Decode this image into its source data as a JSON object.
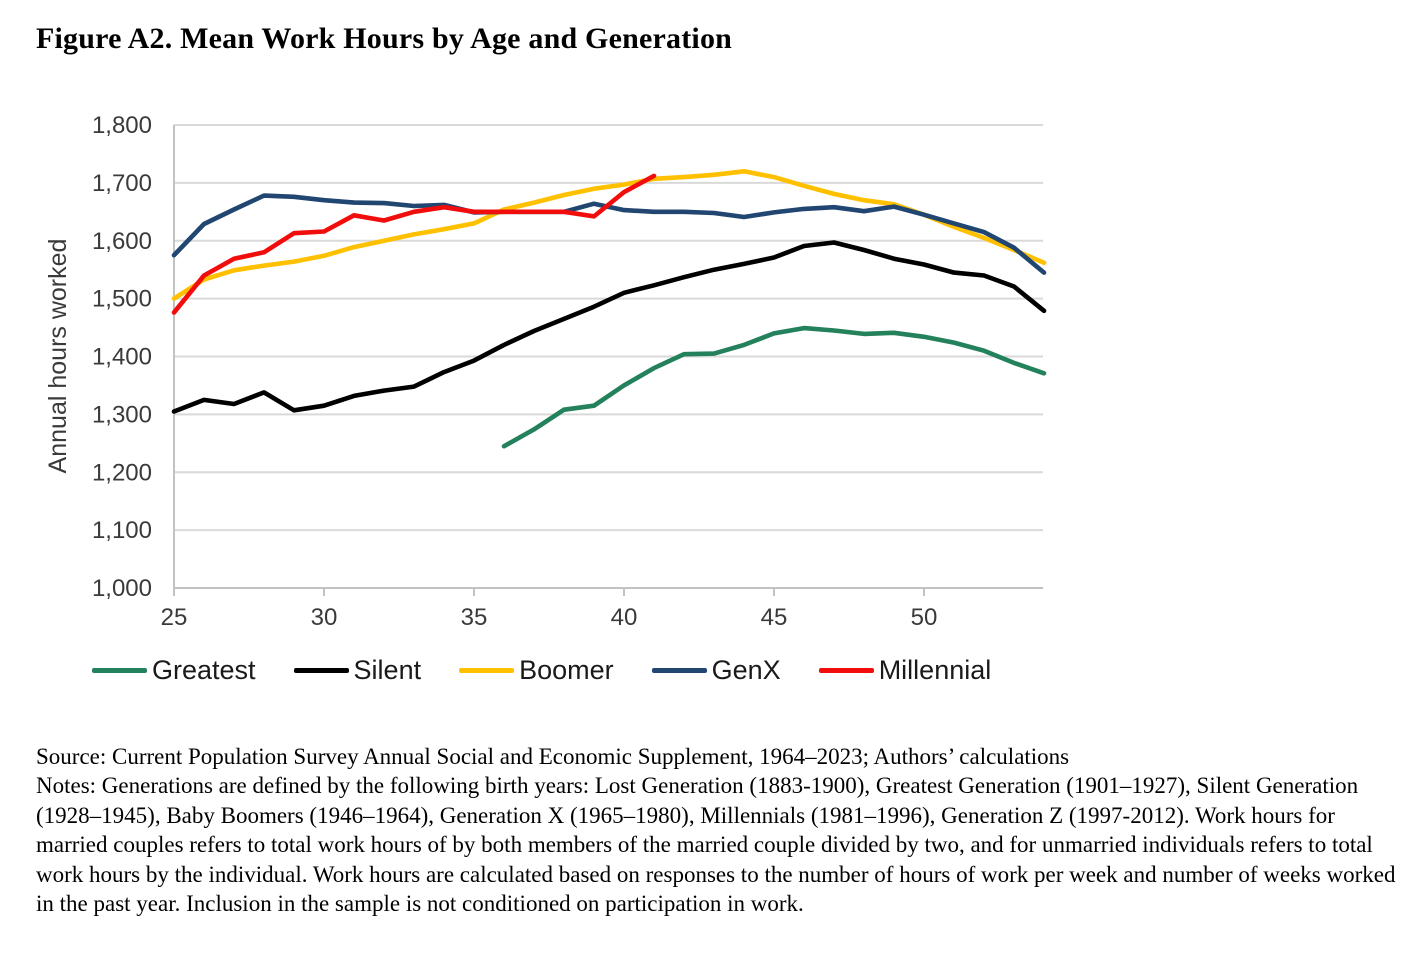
{
  "title": "Figure A2. Mean Work Hours by Age and Generation",
  "source": "Source: Current Population Survey Annual Social and Economic Supplement, 1964–2023; Authors’ calculations",
  "notes": "Notes: Generations are defined by the following birth years: Lost Generation (1883-1900), Greatest Generation (1901–1927), Silent Generation (1928–1945), Baby Boomers (1946–1964), Generation X (1965–1980), Millennials (1981–1996), Generation Z (1997-2012). Work hours for married couples refers to total work hours of by both members of the married couple divided by two, and for unmarried individuals refers to total work hours by the individual. Work hours are calculated based on responses to the number of hours of work per week and number of weeks worked in the past year. Inclusion in the sample is not conditioned on participation in work.",
  "chart_data": {
    "type": "line",
    "title": "Figure A2. Mean Work Hours by Age and Generation",
    "xlabel": "",
    "ylabel": "Annual hours worked",
    "xlim": [
      25,
      54.3
    ],
    "ylim": [
      1000,
      1800
    ],
    "x_ticks": [
      25,
      30,
      35,
      40,
      45,
      50
    ],
    "y_tick_values": [
      1000,
      1100,
      1200,
      1300,
      1400,
      1500,
      1600,
      1700,
      1800
    ],
    "y_tick_labels": [
      "1,000",
      "1,100",
      "1,200",
      "1,300",
      "1,400",
      "1,500",
      "1,600",
      "1,700",
      "1,800"
    ],
    "grid": true,
    "legend_position": "bottom",
    "grid_color": "#d9d9d9",
    "axis_color": "#c2c2c2",
    "series": [
      {
        "name": "Greatest",
        "color": "#23825b",
        "ages": [
          36,
          37,
          38,
          39,
          40,
          41,
          42,
          43,
          44,
          45,
          46,
          47,
          48,
          49,
          50,
          51,
          52,
          53,
          54
        ],
        "values": [
          1245,
          1274,
          1308,
          1315,
          1350,
          1380,
          1404,
          1405,
          1420,
          1440,
          1449,
          1445,
          1439,
          1441,
          1434,
          1424,
          1410,
          1389,
          1371
        ]
      },
      {
        "name": "Silent",
        "color": "#000000",
        "ages": [
          25,
          26,
          27,
          28,
          29,
          30,
          31,
          32,
          33,
          34,
          35,
          36,
          37,
          38,
          39,
          40,
          41,
          42,
          43,
          44,
          45,
          46,
          47,
          48,
          49,
          50,
          51,
          52,
          53,
          54
        ],
        "values": [
          1305,
          1325,
          1318,
          1338,
          1307,
          1315,
          1332,
          1341,
          1348,
          1373,
          1393,
          1420,
          1444,
          1465,
          1486,
          1510,
          1523,
          1537,
          1550,
          1560,
          1571,
          1591,
          1597,
          1584,
          1569,
          1559,
          1545,
          1540,
          1521,
          1479
        ]
      },
      {
        "name": "Boomer",
        "color": "#ffc000",
        "ages": [
          25,
          26,
          27,
          28,
          29,
          30,
          31,
          32,
          33,
          34,
          35,
          36,
          37,
          38,
          39,
          40,
          41,
          42,
          43,
          44,
          45,
          46,
          47,
          48,
          49,
          50,
          51,
          52,
          53,
          54
        ],
        "values": [
          1500,
          1533,
          1549,
          1557,
          1564,
          1574,
          1589,
          1600,
          1611,
          1620,
          1630,
          1654,
          1666,
          1679,
          1690,
          1697,
          1707,
          1710,
          1714,
          1720,
          1710,
          1695,
          1681,
          1670,
          1663,
          1645,
          1624,
          1605,
          1584,
          1562
        ]
      },
      {
        "name": "GenX",
        "color": "#214671",
        "ages": [
          25,
          26,
          27,
          28,
          29,
          30,
          31,
          32,
          33,
          34,
          35,
          36,
          37,
          38,
          39,
          40,
          41,
          42,
          43,
          44,
          45,
          46,
          47,
          48,
          49,
          50,
          51,
          52,
          53,
          54
        ],
        "values": [
          1575,
          1629,
          1654,
          1678,
          1676,
          1670,
          1666,
          1665,
          1660,
          1662,
          1649,
          1650,
          1650,
          1650,
          1664,
          1653,
          1650,
          1650,
          1648,
          1641,
          1649,
          1655,
          1658,
          1651,
          1659,
          1645,
          1630,
          1615,
          1588,
          1545
        ]
      },
      {
        "name": "Millennial",
        "color": "#f20d0d",
        "ages": [
          25,
          26,
          27,
          28,
          29,
          30,
          31,
          32,
          33,
          34,
          35,
          36,
          37,
          38,
          39,
          40,
          41
        ],
        "values": [
          1476,
          1540,
          1569,
          1580,
          1613,
          1616,
          1644,
          1635,
          1650,
          1658,
          1650,
          1650,
          1650,
          1650,
          1642,
          1684,
          1712
        ]
      }
    ]
  }
}
